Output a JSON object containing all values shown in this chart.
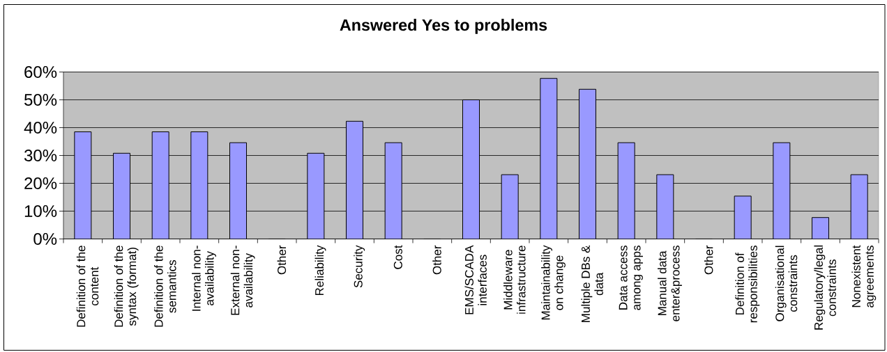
{
  "chart_data": {
    "type": "bar",
    "title": "Answered Yes to problems",
    "categories": [
      "Definition of the content",
      "Definition of the syntax (format)",
      "Definition of the semantics",
      "Internal non-availability",
      "External non-availability",
      "Other",
      "Reliability",
      "Security",
      "Cost",
      "Other",
      "EMS/SCADA interfaces",
      "Middleware infrastructure",
      "Maintainability on change",
      "Multiple DBs & data",
      "Data access among apps",
      "Manual data enter&process",
      "Other",
      "Definition of responsibilities",
      "Organisational constraints",
      "Regulatory/legal constraints",
      "Nonexistent agreements"
    ],
    "values": [
      38.5,
      30.8,
      38.5,
      38.5,
      34.6,
      0,
      30.8,
      42.3,
      34.6,
      0,
      50.0,
      23.1,
      57.7,
      53.8,
      34.6,
      23.1,
      0,
      15.4,
      34.6,
      7.7,
      23.1
    ],
    "color": "#9999ff",
    "ylim": [
      0,
      60
    ],
    "yticks": [
      {
        "value": 0,
        "label": "0%"
      },
      {
        "value": 10,
        "label": "10%"
      },
      {
        "value": 20,
        "label": "20%"
      },
      {
        "value": 30,
        "label": "30%"
      },
      {
        "value": 40,
        "label": "40%"
      },
      {
        "value": 50,
        "label": "50%"
      },
      {
        "value": 60,
        "label": "60%"
      }
    ],
    "grid": "y"
  }
}
